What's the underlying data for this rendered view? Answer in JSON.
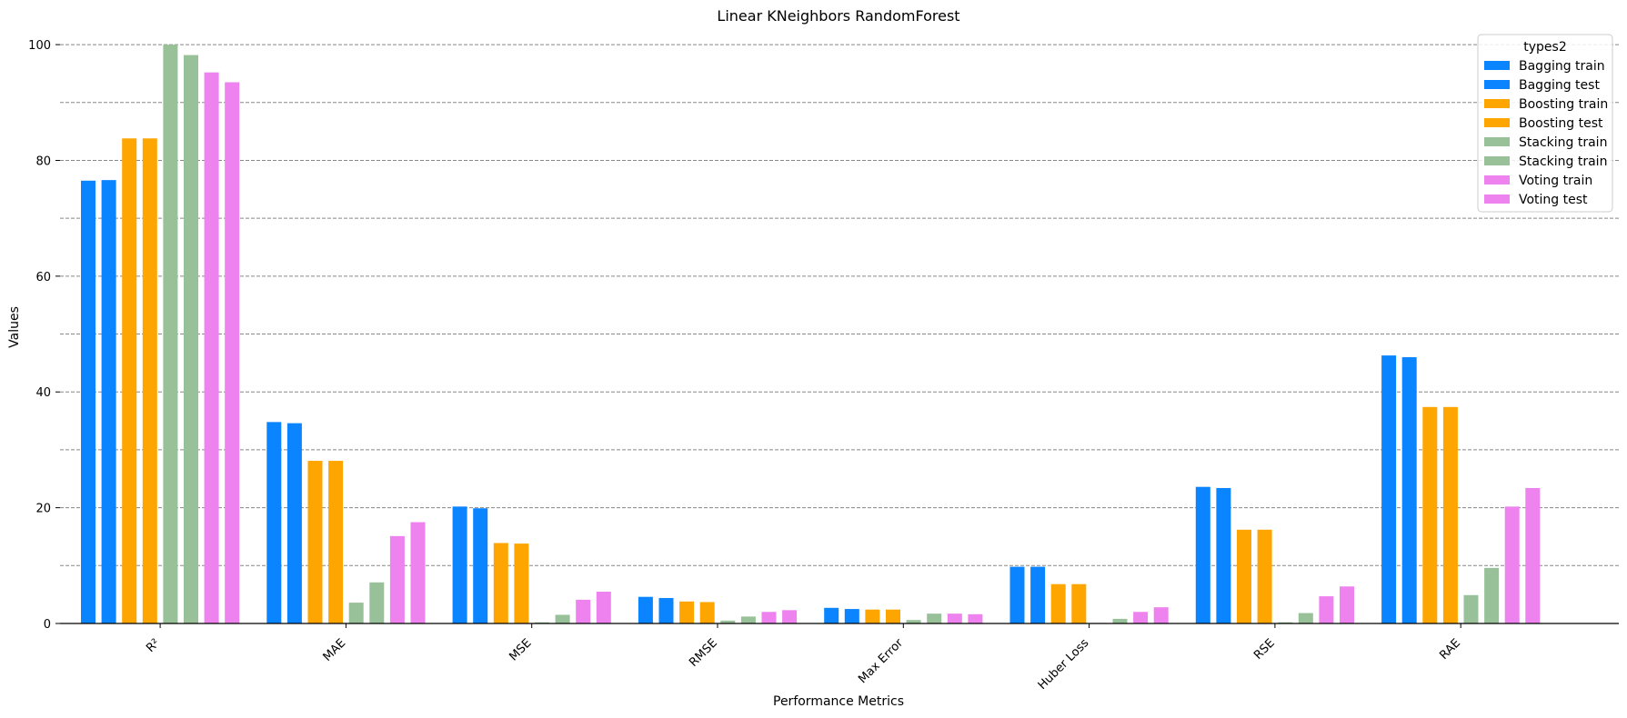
{
  "chart_data": {
    "type": "bar",
    "title": "Linear KNeighbors RandomForest",
    "xlabel": "Performance Metrics",
    "ylabel": "Values",
    "ylim": [
      0,
      103
    ],
    "yticks": [
      0,
      20,
      40,
      60,
      80,
      100
    ],
    "grid": "horizontal dashed",
    "legend_title": "types2",
    "legend_position": "top-right",
    "categories": [
      "R²",
      "MAE",
      "MSE",
      "RMSE",
      "Max Error",
      "Huber Loss",
      "RSE",
      "RAE"
    ],
    "series": [
      {
        "name": "Bagging train",
        "color": "#0a84ff",
        "values": [
          76.5,
          34.8,
          20.2,
          4.6,
          2.7,
          9.8,
          23.6,
          46.3
        ]
      },
      {
        "name": "Bagging test",
        "color": "#0a84ff",
        "values": [
          76.6,
          34.6,
          19.9,
          4.4,
          2.5,
          9.8,
          23.4,
          46.0
        ]
      },
      {
        "name": "Boosting train",
        "color": "#ffa500",
        "values": [
          83.8,
          28.1,
          13.9,
          3.8,
          2.4,
          6.8,
          16.2,
          37.4
        ]
      },
      {
        "name": "Boosting test",
        "color": "#ffa500",
        "values": [
          83.8,
          28.1,
          13.8,
          3.7,
          2.4,
          6.8,
          16.2,
          37.4
        ]
      },
      {
        "name": "Stacking train",
        "color": "#99c199",
        "values": [
          100.0,
          3.6,
          0.2,
          0.5,
          0.6,
          0.1,
          0.2,
          4.9
        ]
      },
      {
        "name": "Stacking train",
        "color": "#99c199",
        "values": [
          98.2,
          7.1,
          1.5,
          1.2,
          1.7,
          0.8,
          1.8,
          9.6
        ]
      },
      {
        "name": "Voting train",
        "color": "#ee82ee",
        "values": [
          95.2,
          15.1,
          4.1,
          2.0,
          1.7,
          2.0,
          4.7,
          20.2
        ]
      },
      {
        "name": "Voting test",
        "color": "#ee82ee",
        "values": [
          93.5,
          17.5,
          5.5,
          2.3,
          1.6,
          2.8,
          6.4,
          23.4
        ]
      }
    ]
  }
}
